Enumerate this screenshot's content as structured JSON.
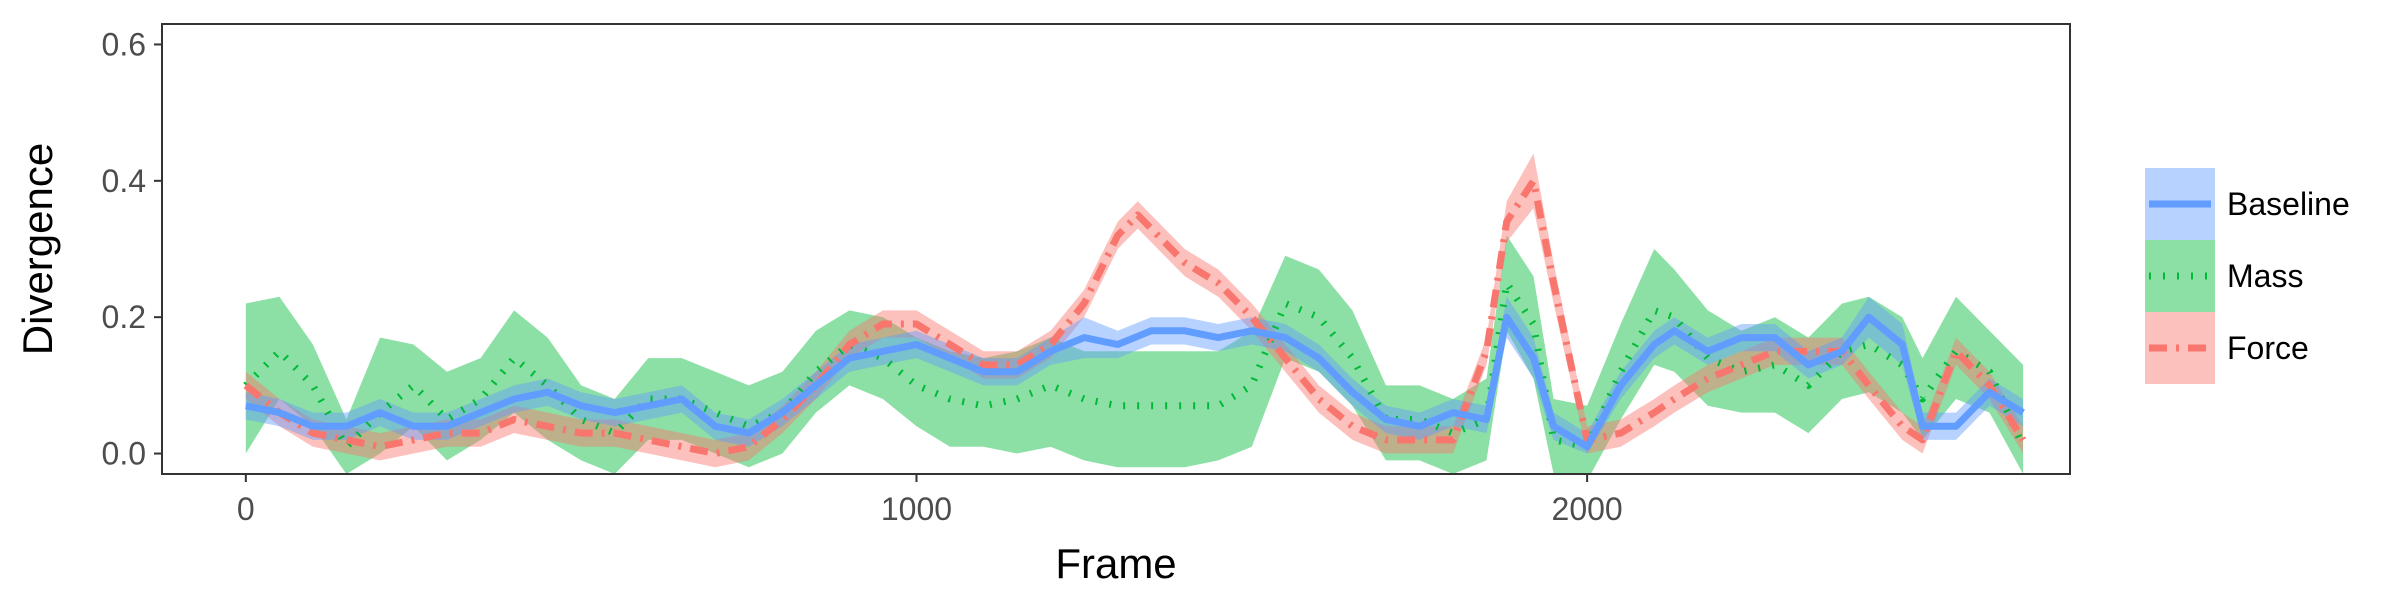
{
  "chart_data": {
    "type": "line",
    "xlabel": "Frame",
    "ylabel": "Divergence",
    "xlim": [
      -125,
      2720
    ],
    "ylim": [
      -0.03,
      0.63
    ],
    "x_ticks": [
      0,
      1000,
      2000
    ],
    "x_tick_labels": [
      "0",
      "1000",
      "2000"
    ],
    "y_ticks": [
      0.0,
      0.2,
      0.4,
      0.6
    ],
    "y_tick_labels": [
      "0.0",
      "0.2",
      "0.4",
      "0.6"
    ],
    "grid": false,
    "legend_position": "right",
    "series": [
      {
        "name": "Baseline",
        "color": "#619CFF",
        "style": "solid",
        "x": [
          0,
          50,
          100,
          150,
          200,
          250,
          300,
          350,
          400,
          450,
          500,
          550,
          600,
          650,
          700,
          750,
          800,
          850,
          900,
          950,
          1000,
          1050,
          1100,
          1150,
          1200,
          1250,
          1300,
          1350,
          1400,
          1450,
          1500,
          1550,
          1600,
          1650,
          1700,
          1750,
          1800,
          1850,
          1880,
          1920,
          1950,
          2000,
          2050,
          2100,
          2130,
          2180,
          2230,
          2280,
          2330,
          2380,
          2420,
          2470,
          2500,
          2550,
          2600,
          2650
        ],
        "y": [
          0.07,
          0.06,
          0.04,
          0.04,
          0.06,
          0.04,
          0.04,
          0.06,
          0.08,
          0.09,
          0.07,
          0.06,
          0.07,
          0.08,
          0.04,
          0.03,
          0.06,
          0.1,
          0.14,
          0.15,
          0.16,
          0.14,
          0.12,
          0.12,
          0.15,
          0.17,
          0.16,
          0.18,
          0.18,
          0.17,
          0.18,
          0.17,
          0.14,
          0.09,
          0.05,
          0.04,
          0.06,
          0.05,
          0.2,
          0.14,
          0.04,
          0.01,
          0.1,
          0.16,
          0.18,
          0.15,
          0.17,
          0.17,
          0.13,
          0.15,
          0.2,
          0.16,
          0.04,
          0.04,
          0.09,
          0.06
        ],
        "lower": [
          0.05,
          0.04,
          0.02,
          0.02,
          0.04,
          0.02,
          0.02,
          0.04,
          0.06,
          0.07,
          0.05,
          0.04,
          0.05,
          0.06,
          0.02,
          0.01,
          0.04,
          0.08,
          0.12,
          0.13,
          0.14,
          0.12,
          0.1,
          0.1,
          0.13,
          0.14,
          0.14,
          0.16,
          0.16,
          0.15,
          0.16,
          0.15,
          0.12,
          0.07,
          0.03,
          0.02,
          0.04,
          0.03,
          0.17,
          0.11,
          0.02,
          0.0,
          0.08,
          0.14,
          0.16,
          0.13,
          0.15,
          0.15,
          0.11,
          0.13,
          0.17,
          0.13,
          0.02,
          0.02,
          0.07,
          0.04
        ],
        "upper": [
          0.09,
          0.08,
          0.06,
          0.06,
          0.08,
          0.06,
          0.06,
          0.08,
          0.1,
          0.11,
          0.09,
          0.08,
          0.09,
          0.1,
          0.06,
          0.05,
          0.08,
          0.12,
          0.16,
          0.17,
          0.18,
          0.16,
          0.14,
          0.14,
          0.17,
          0.2,
          0.18,
          0.2,
          0.2,
          0.19,
          0.2,
          0.19,
          0.16,
          0.11,
          0.07,
          0.06,
          0.08,
          0.07,
          0.23,
          0.17,
          0.06,
          0.03,
          0.12,
          0.18,
          0.2,
          0.17,
          0.19,
          0.19,
          0.15,
          0.17,
          0.23,
          0.19,
          0.06,
          0.06,
          0.11,
          0.08
        ]
      },
      {
        "name": "Mass",
        "color": "#00BA38",
        "style": "dotted",
        "x": [
          0,
          50,
          100,
          150,
          200,
          250,
          300,
          350,
          400,
          450,
          500,
          550,
          600,
          650,
          700,
          750,
          800,
          850,
          900,
          950,
          1000,
          1050,
          1100,
          1150,
          1200,
          1250,
          1300,
          1350,
          1400,
          1450,
          1500,
          1550,
          1600,
          1650,
          1700,
          1750,
          1800,
          1850,
          1880,
          1920,
          1950,
          2000,
          2050,
          2100,
          2130,
          2180,
          2230,
          2280,
          2330,
          2380,
          2420,
          2470,
          2500,
          2550,
          2600,
          2650
        ],
        "y": [
          0.1,
          0.15,
          0.1,
          0.01,
          0.06,
          0.1,
          0.05,
          0.08,
          0.14,
          0.1,
          0.05,
          0.03,
          0.08,
          0.08,
          0.06,
          0.04,
          0.06,
          0.12,
          0.16,
          0.14,
          0.1,
          0.08,
          0.07,
          0.08,
          0.1,
          0.08,
          0.07,
          0.07,
          0.07,
          0.07,
          0.1,
          0.22,
          0.2,
          0.14,
          0.05,
          0.05,
          0.03,
          0.05,
          0.25,
          0.19,
          0.02,
          0.01,
          0.12,
          0.21,
          0.2,
          0.14,
          0.12,
          0.13,
          0.1,
          0.15,
          0.16,
          0.13,
          0.08,
          0.15,
          0.12,
          0.01
        ],
        "lower": [
          0.0,
          0.08,
          0.04,
          -0.03,
          0.0,
          0.04,
          -0.01,
          0.02,
          0.06,
          0.02,
          -0.01,
          -0.03,
          0.02,
          0.02,
          0.0,
          -0.02,
          0.0,
          0.06,
          0.1,
          0.08,
          0.04,
          0.01,
          0.01,
          0.0,
          0.01,
          -0.01,
          -0.02,
          -0.02,
          -0.02,
          -0.01,
          0.01,
          0.14,
          0.12,
          0.07,
          -0.01,
          -0.01,
          -0.03,
          -0.01,
          0.18,
          0.11,
          -0.03,
          -0.04,
          0.05,
          0.13,
          0.12,
          0.07,
          0.06,
          0.06,
          0.03,
          0.08,
          0.09,
          0.06,
          0.02,
          0.08,
          0.06,
          -0.03
        ],
        "upper": [
          0.22,
          0.23,
          0.16,
          0.05,
          0.17,
          0.16,
          0.12,
          0.14,
          0.21,
          0.17,
          0.1,
          0.08,
          0.14,
          0.14,
          0.12,
          0.1,
          0.12,
          0.18,
          0.21,
          0.2,
          0.17,
          0.15,
          0.14,
          0.15,
          0.17,
          0.15,
          0.15,
          0.15,
          0.15,
          0.15,
          0.18,
          0.29,
          0.27,
          0.21,
          0.1,
          0.1,
          0.08,
          0.11,
          0.32,
          0.26,
          0.08,
          0.07,
          0.19,
          0.3,
          0.27,
          0.21,
          0.18,
          0.2,
          0.17,
          0.22,
          0.23,
          0.2,
          0.14,
          0.23,
          0.18,
          0.13
        ]
      },
      {
        "name": "Force",
        "color": "#F8766D",
        "style": "dashdot",
        "x": [
          0,
          50,
          100,
          150,
          200,
          250,
          300,
          350,
          400,
          450,
          500,
          550,
          600,
          650,
          700,
          750,
          800,
          850,
          900,
          950,
          1000,
          1050,
          1100,
          1150,
          1200,
          1250,
          1300,
          1330,
          1360,
          1400,
          1450,
          1500,
          1550,
          1600,
          1650,
          1700,
          1750,
          1800,
          1850,
          1880,
          1920,
          1950,
          2000,
          2050,
          2100,
          2130,
          2180,
          2230,
          2280,
          2330,
          2380,
          2420,
          2470,
          2500,
          2550,
          2600,
          2650
        ],
        "y": [
          0.1,
          0.06,
          0.03,
          0.02,
          0.01,
          0.02,
          0.03,
          0.03,
          0.05,
          0.04,
          0.03,
          0.03,
          0.02,
          0.01,
          0.0,
          0.01,
          0.05,
          0.1,
          0.16,
          0.19,
          0.19,
          0.16,
          0.13,
          0.13,
          0.16,
          0.22,
          0.32,
          0.35,
          0.32,
          0.28,
          0.25,
          0.2,
          0.14,
          0.08,
          0.04,
          0.02,
          0.02,
          0.02,
          0.15,
          0.34,
          0.4,
          0.25,
          0.02,
          0.03,
          0.06,
          0.08,
          0.11,
          0.13,
          0.15,
          0.15,
          0.15,
          0.1,
          0.04,
          0.02,
          0.15,
          0.1,
          0.02
        ],
        "lower": [
          0.08,
          0.04,
          0.01,
          0.0,
          -0.01,
          0.0,
          0.01,
          0.01,
          0.03,
          0.02,
          0.01,
          0.01,
          0.0,
          -0.01,
          -0.02,
          -0.01,
          0.03,
          0.08,
          0.14,
          0.17,
          0.17,
          0.14,
          0.11,
          0.11,
          0.14,
          0.2,
          0.3,
          0.33,
          0.3,
          0.26,
          0.23,
          0.18,
          0.12,
          0.06,
          0.02,
          0.0,
          0.0,
          0.0,
          0.13,
          0.31,
          0.36,
          0.22,
          0.0,
          0.01,
          0.04,
          0.06,
          0.09,
          0.11,
          0.13,
          0.13,
          0.13,
          0.08,
          0.02,
          0.0,
          0.13,
          0.08,
          0.0
        ],
        "upper": [
          0.12,
          0.08,
          0.05,
          0.04,
          0.03,
          0.04,
          0.05,
          0.05,
          0.07,
          0.06,
          0.05,
          0.05,
          0.04,
          0.03,
          0.02,
          0.03,
          0.07,
          0.12,
          0.18,
          0.21,
          0.21,
          0.18,
          0.15,
          0.15,
          0.18,
          0.24,
          0.34,
          0.37,
          0.34,
          0.3,
          0.27,
          0.22,
          0.16,
          0.1,
          0.06,
          0.04,
          0.04,
          0.04,
          0.17,
          0.37,
          0.44,
          0.28,
          0.04,
          0.05,
          0.08,
          0.1,
          0.13,
          0.15,
          0.17,
          0.17,
          0.17,
          0.12,
          0.06,
          0.04,
          0.17,
          0.12,
          0.04
        ]
      }
    ]
  }
}
